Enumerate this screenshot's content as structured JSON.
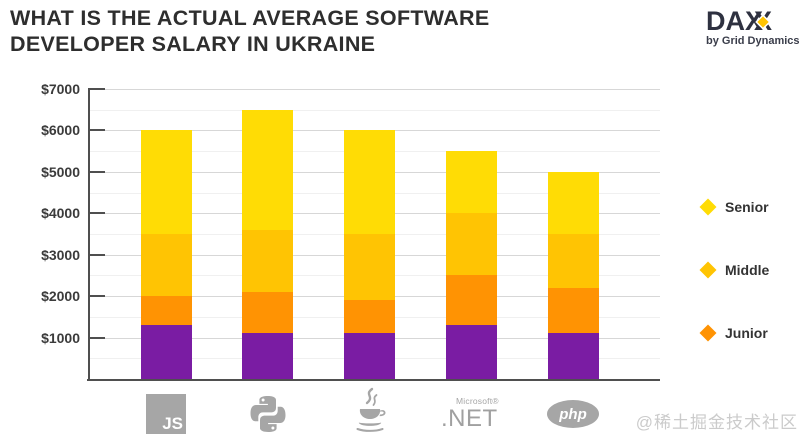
{
  "header": {
    "title_line1": "WHAT IS THE ACTUAL AVERAGE SOFTWARE",
    "title_line2": "DEVELOPER SALARY IN UKRAINE",
    "logo": {
      "da": "DA",
      "x1": "X",
      "x2": "X",
      "tagline": "by Grid Dynamics",
      "diamond_color": "#FFC403"
    }
  },
  "chart_data": {
    "type": "bar",
    "stacked": true,
    "title": "WHAT IS THE ACTUAL AVERAGE SOFTWARE DEVELOPER SALARY IN UKRAINE",
    "categories": [
      "JavaScript",
      "Python",
      "Java",
      "Microsoft .NET",
      "PHP"
    ],
    "y_axis": {
      "min": 0,
      "max": 7000,
      "major_step": 1000,
      "minor_step": 500,
      "tick_labels": [
        "$1000",
        "$2000",
        "$3000",
        "$4000",
        "$5000",
        "$6000",
        "$7000"
      ]
    },
    "grid": true,
    "legend_position": "right",
    "series": [
      {
        "name": "",
        "in_legend": false,
        "color": "#7A1CA3",
        "values": [
          1300,
          1100,
          1100,
          1300,
          1100
        ]
      },
      {
        "name": "Junior",
        "in_legend": true,
        "color": "#FF9303",
        "values": [
          700,
          1000,
          800,
          1200,
          1100
        ]
      },
      {
        "name": "Middle",
        "in_legend": true,
        "color": "#FFC403",
        "values": [
          1500,
          1500,
          1600,
          1500,
          1300
        ]
      },
      {
        "name": "Senior",
        "in_legend": true,
        "color": "#FFDC05",
        "values": [
          2500,
          2900,
          2500,
          1500,
          1500
        ]
      }
    ],
    "stack_totals": [
      6000,
      6500,
      6000,
      5500,
      5000
    ]
  },
  "x_icons": {
    "javascript": {
      "label": "JS"
    },
    "dotnet": {
      "label_top": "Microsoft®",
      "label": ".NET"
    },
    "php": {
      "label": "php"
    }
  },
  "watermark": "@稀土掘金技术社区"
}
